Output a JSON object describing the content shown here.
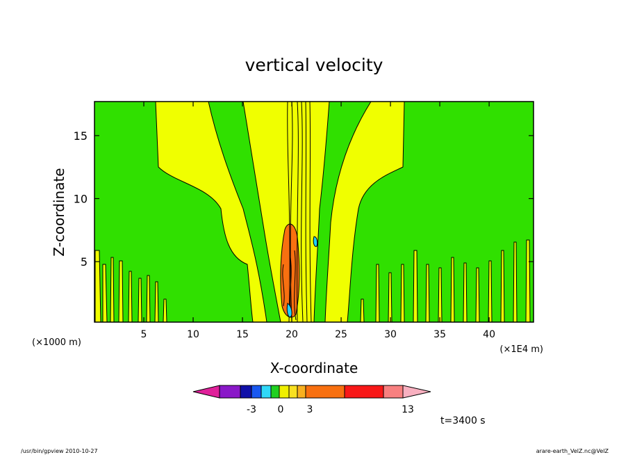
{
  "chart_data": {
    "type": "heatmap",
    "title": "vertical velocity",
    "xlabel": "X-coordinate",
    "ylabel": "Z-coordinate",
    "x_unit_left": "(×1000 m)",
    "x_unit_right": "(×1E4 m)",
    "xlim": [
      0,
      44.5
    ],
    "ylim": [
      0.2,
      17.7
    ],
    "x_ticks": [
      "5",
      "10",
      "15",
      "20",
      "25",
      "30",
      "35",
      "40"
    ],
    "x_tick_values": [
      5,
      10,
      15,
      20,
      25,
      30,
      35,
      40
    ],
    "y_ticks": [
      "5",
      "10",
      "15"
    ],
    "y_tick_values": [
      5,
      10,
      15
    ],
    "colorbar": {
      "colors": [
        "#e0209a",
        "#8a18c8",
        "#1010a8",
        "#1858f0",
        "#30d8f8",
        "#20d020",
        "#f0f000",
        "#f8e020",
        "#f8b020",
        "#f87010",
        "#f81818",
        "#f88080",
        "#f8b0c0"
      ],
      "tick_labels": [
        "-3",
        "0",
        "3",
        "13"
      ]
    },
    "annotation_time": "t=3400 s",
    "contour_colors": {
      "background": "#30e000",
      "positive": "#f0ff00",
      "strong": "#f87010",
      "negative": "#20d0f8"
    }
  },
  "footer": {
    "left": "/usr/bin/gpview   2010-10-27",
    "right": "arare-earth_VelZ.nc@VelZ"
  }
}
